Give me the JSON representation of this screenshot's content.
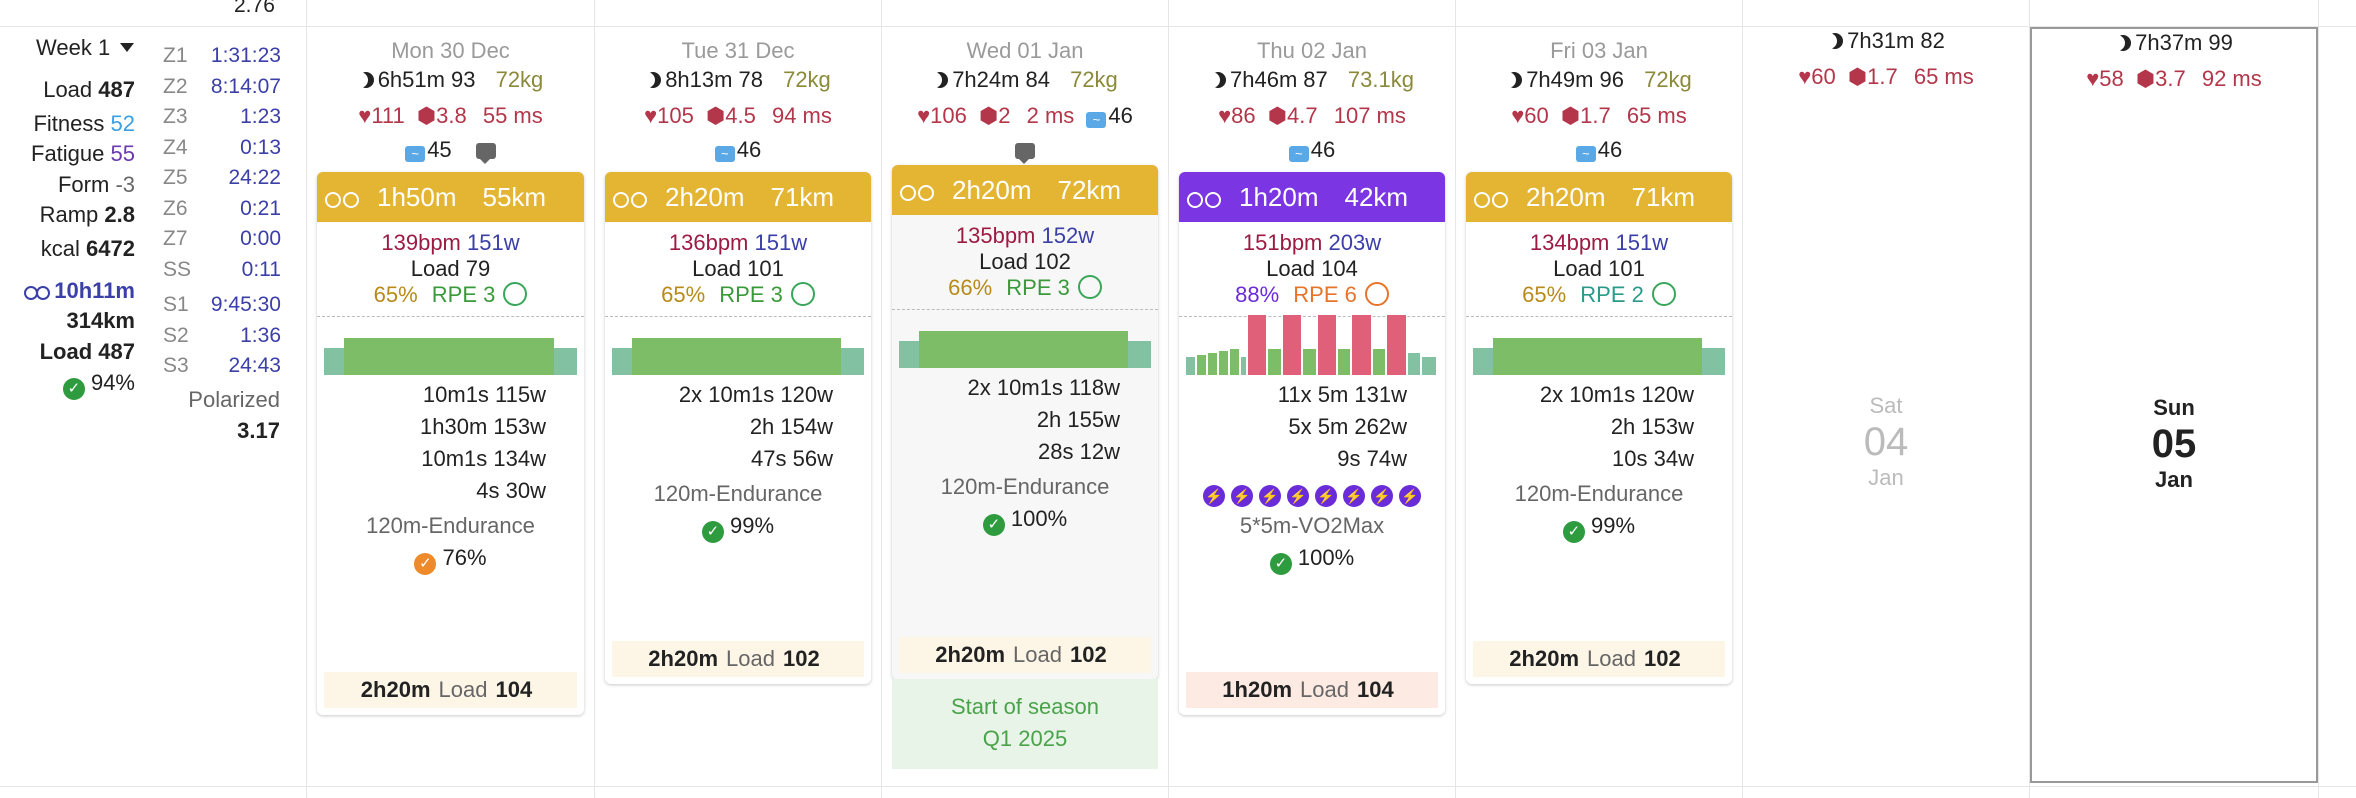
{
  "top_value": "2.76",
  "week": {
    "title": "Week 1",
    "load_label": "Load",
    "load": "487",
    "fitness_label": "Fitness",
    "fitness": "52",
    "fatigue_label": "Fatigue",
    "fatigue": "55",
    "form_label": "Form",
    "form": "-3",
    "ramp_label": "Ramp",
    "ramp": "2.8",
    "kcal_label": "kcal",
    "kcal": "6472",
    "ride_time": "10h11m",
    "ride_dist": "314km",
    "ride_load_label": "Load",
    "ride_load": "487",
    "compliance": "94%",
    "zones": [
      {
        "k": "Z1",
        "v": "1:31:23"
      },
      {
        "k": "Z2",
        "v": "8:14:07"
      },
      {
        "k": "Z3",
        "v": "1:23"
      },
      {
        "k": "Z4",
        "v": "0:13"
      },
      {
        "k": "Z5",
        "v": "24:22"
      },
      {
        "k": "Z6",
        "v": "0:21"
      },
      {
        "k": "Z7",
        "v": "0:00"
      },
      {
        "k": "SS",
        "v": "0:11"
      }
    ],
    "sweet": [
      {
        "k": "S1",
        "v": "9:45:30"
      },
      {
        "k": "S2",
        "v": "1:36"
      },
      {
        "k": "S3",
        "v": "24:43"
      }
    ],
    "polarized_label": "Polarized",
    "polarized": "3.17"
  },
  "days": [
    {
      "header": "Mon 30 Dec",
      "sleep": "6h51m",
      "sleep_score": "93",
      "weight": "72kg",
      "rhr": "111",
      "hexv": "3.8",
      "hrv": "55 ms",
      "ecg": "45",
      "comment": true,
      "card": {
        "color": "#e3b533",
        "duration": "1h50m",
        "distance": "55km",
        "bpm": "139bpm",
        "watts": "151w",
        "load_label": "Load",
        "load": "79",
        "pct": "65%",
        "rpe": "RPE 3",
        "face": "happy",
        "steps": [
          "10m1s 115w",
          "1h30m 153w",
          "10m1s 134w",
          "4s 30w"
        ],
        "workout": "120m-Endurance",
        "compliance": "76%",
        "comp_color": "orange",
        "foot_dur": "2h20m",
        "foot_load_label": "Load",
        "foot_load": "104",
        "foot_bg": "#fdf6e6"
      }
    },
    {
      "header": "Tue 31 Dec",
      "sleep": "8h13m",
      "sleep_score": "78",
      "weight": "72kg",
      "rhr": "105",
      "hexv": "4.5",
      "hrv": "94 ms",
      "ecg": "46",
      "comment": false,
      "card": {
        "color": "#e3b533",
        "duration": "2h20m",
        "distance": "71km",
        "bpm": "136bpm",
        "watts": "151w",
        "load_label": "Load",
        "load": "101",
        "pct": "65%",
        "rpe": "RPE 3",
        "face": "happy",
        "steps": [
          "2x 10m1s 120w",
          "2h 154w",
          "47s 56w"
        ],
        "workout": "120m-Endurance",
        "compliance": "99%",
        "comp_color": "green",
        "foot_dur": "2h20m",
        "foot_load_label": "Load",
        "foot_load": "102",
        "foot_bg": "#fdf6e6"
      }
    },
    {
      "header": "Wed 01 Jan",
      "sleep": "7h24m",
      "sleep_score": "84",
      "weight": "72kg",
      "rhr": "106",
      "hexv": "2",
      "hrv": "2 ms",
      "ecg": "46",
      "comment": true,
      "card": {
        "color": "#e3b533",
        "duration": "2h20m",
        "distance": "72km",
        "bpm": "135bpm",
        "watts": "152w",
        "load_label": "Load",
        "load": "102",
        "pct": "66%",
        "rpe": "RPE 3",
        "face": "happy",
        "steps": [
          "2x 10m1s 118w",
          "2h 155w",
          "28s 12w"
        ],
        "workout": "120m-Endurance",
        "compliance": "100%",
        "comp_color": "green",
        "foot_dur": "2h20m",
        "foot_load_label": "Load",
        "foot_load": "102",
        "foot_bg": "#fdf6e6"
      },
      "season": {
        "line1": "Start of season",
        "line2": "Q1 2025"
      }
    },
    {
      "header": "Thu 02 Jan",
      "sleep": "7h46m",
      "sleep_score": "87",
      "weight": "73.1kg",
      "rhr": "86",
      "hexv": "4.7",
      "hrv": "107 ms",
      "ecg": "46",
      "comment": false,
      "card": {
        "color": "#7b35e3",
        "duration": "1h20m",
        "distance": "42km",
        "bpm": "151bpm",
        "watts": "203w",
        "load_label": "Load",
        "load": "104",
        "pct": "88%",
        "rpe": "RPE 6",
        "face": "sad",
        "steps": [
          "11x 5m 131w",
          "5x 5m 262w",
          "9s 74w"
        ],
        "intervals": 8,
        "workout": "5*5m-VO2Max",
        "compliance": "100%",
        "comp_color": "green",
        "foot_dur": "1h20m",
        "foot_load_label": "Load",
        "foot_load": "104",
        "foot_bg": "#fdebe3"
      }
    },
    {
      "header": "Fri 03 Jan",
      "sleep": "7h49m",
      "sleep_score": "96",
      "weight": "72kg",
      "rhr": "60",
      "hexv": "1.7",
      "hrv": "65 ms",
      "ecg": "46",
      "comment": false,
      "card": {
        "color": "#e3b533",
        "duration": "2h20m",
        "distance": "71km",
        "bpm": "134bpm",
        "watts": "151w",
        "load_label": "Load",
        "load": "101",
        "pct": "65%",
        "rpe": "RPE 2",
        "face": "happy",
        "steps": [
          "2x 10m1s 120w",
          "2h 153w",
          "10s 34w"
        ],
        "workout": "120m-Endurance",
        "compliance": "99%",
        "comp_color": "green",
        "foot_dur": "2h20m",
        "foot_load_label": "Load",
        "foot_load": "102",
        "foot_bg": "#fdf6e6"
      }
    },
    {
      "header": "",
      "sleep": "7h31m",
      "sleep_score": "82",
      "rhr": "60",
      "hexv": "1.7",
      "hrv": "65 ms",
      "big": {
        "dow": "Sat",
        "num": "04",
        "mon": "Jan"
      }
    },
    {
      "header": "",
      "sleep": "7h37m",
      "sleep_score": "99",
      "rhr": "58",
      "hexv": "3.7",
      "hrv": "92 ms",
      "big": {
        "dow": "Sun",
        "num": "05",
        "mon": "Jan"
      }
    }
  ],
  "icons": {
    "sleep": "moon-icon",
    "rhr": "heart-icon",
    "hrv": "hexagon-icon",
    "ecg": "ecg-icon",
    "comment": "comment-icon",
    "bike": "bike-icon",
    "check": "check-circle-icon",
    "bolt": "bolt-icon"
  }
}
